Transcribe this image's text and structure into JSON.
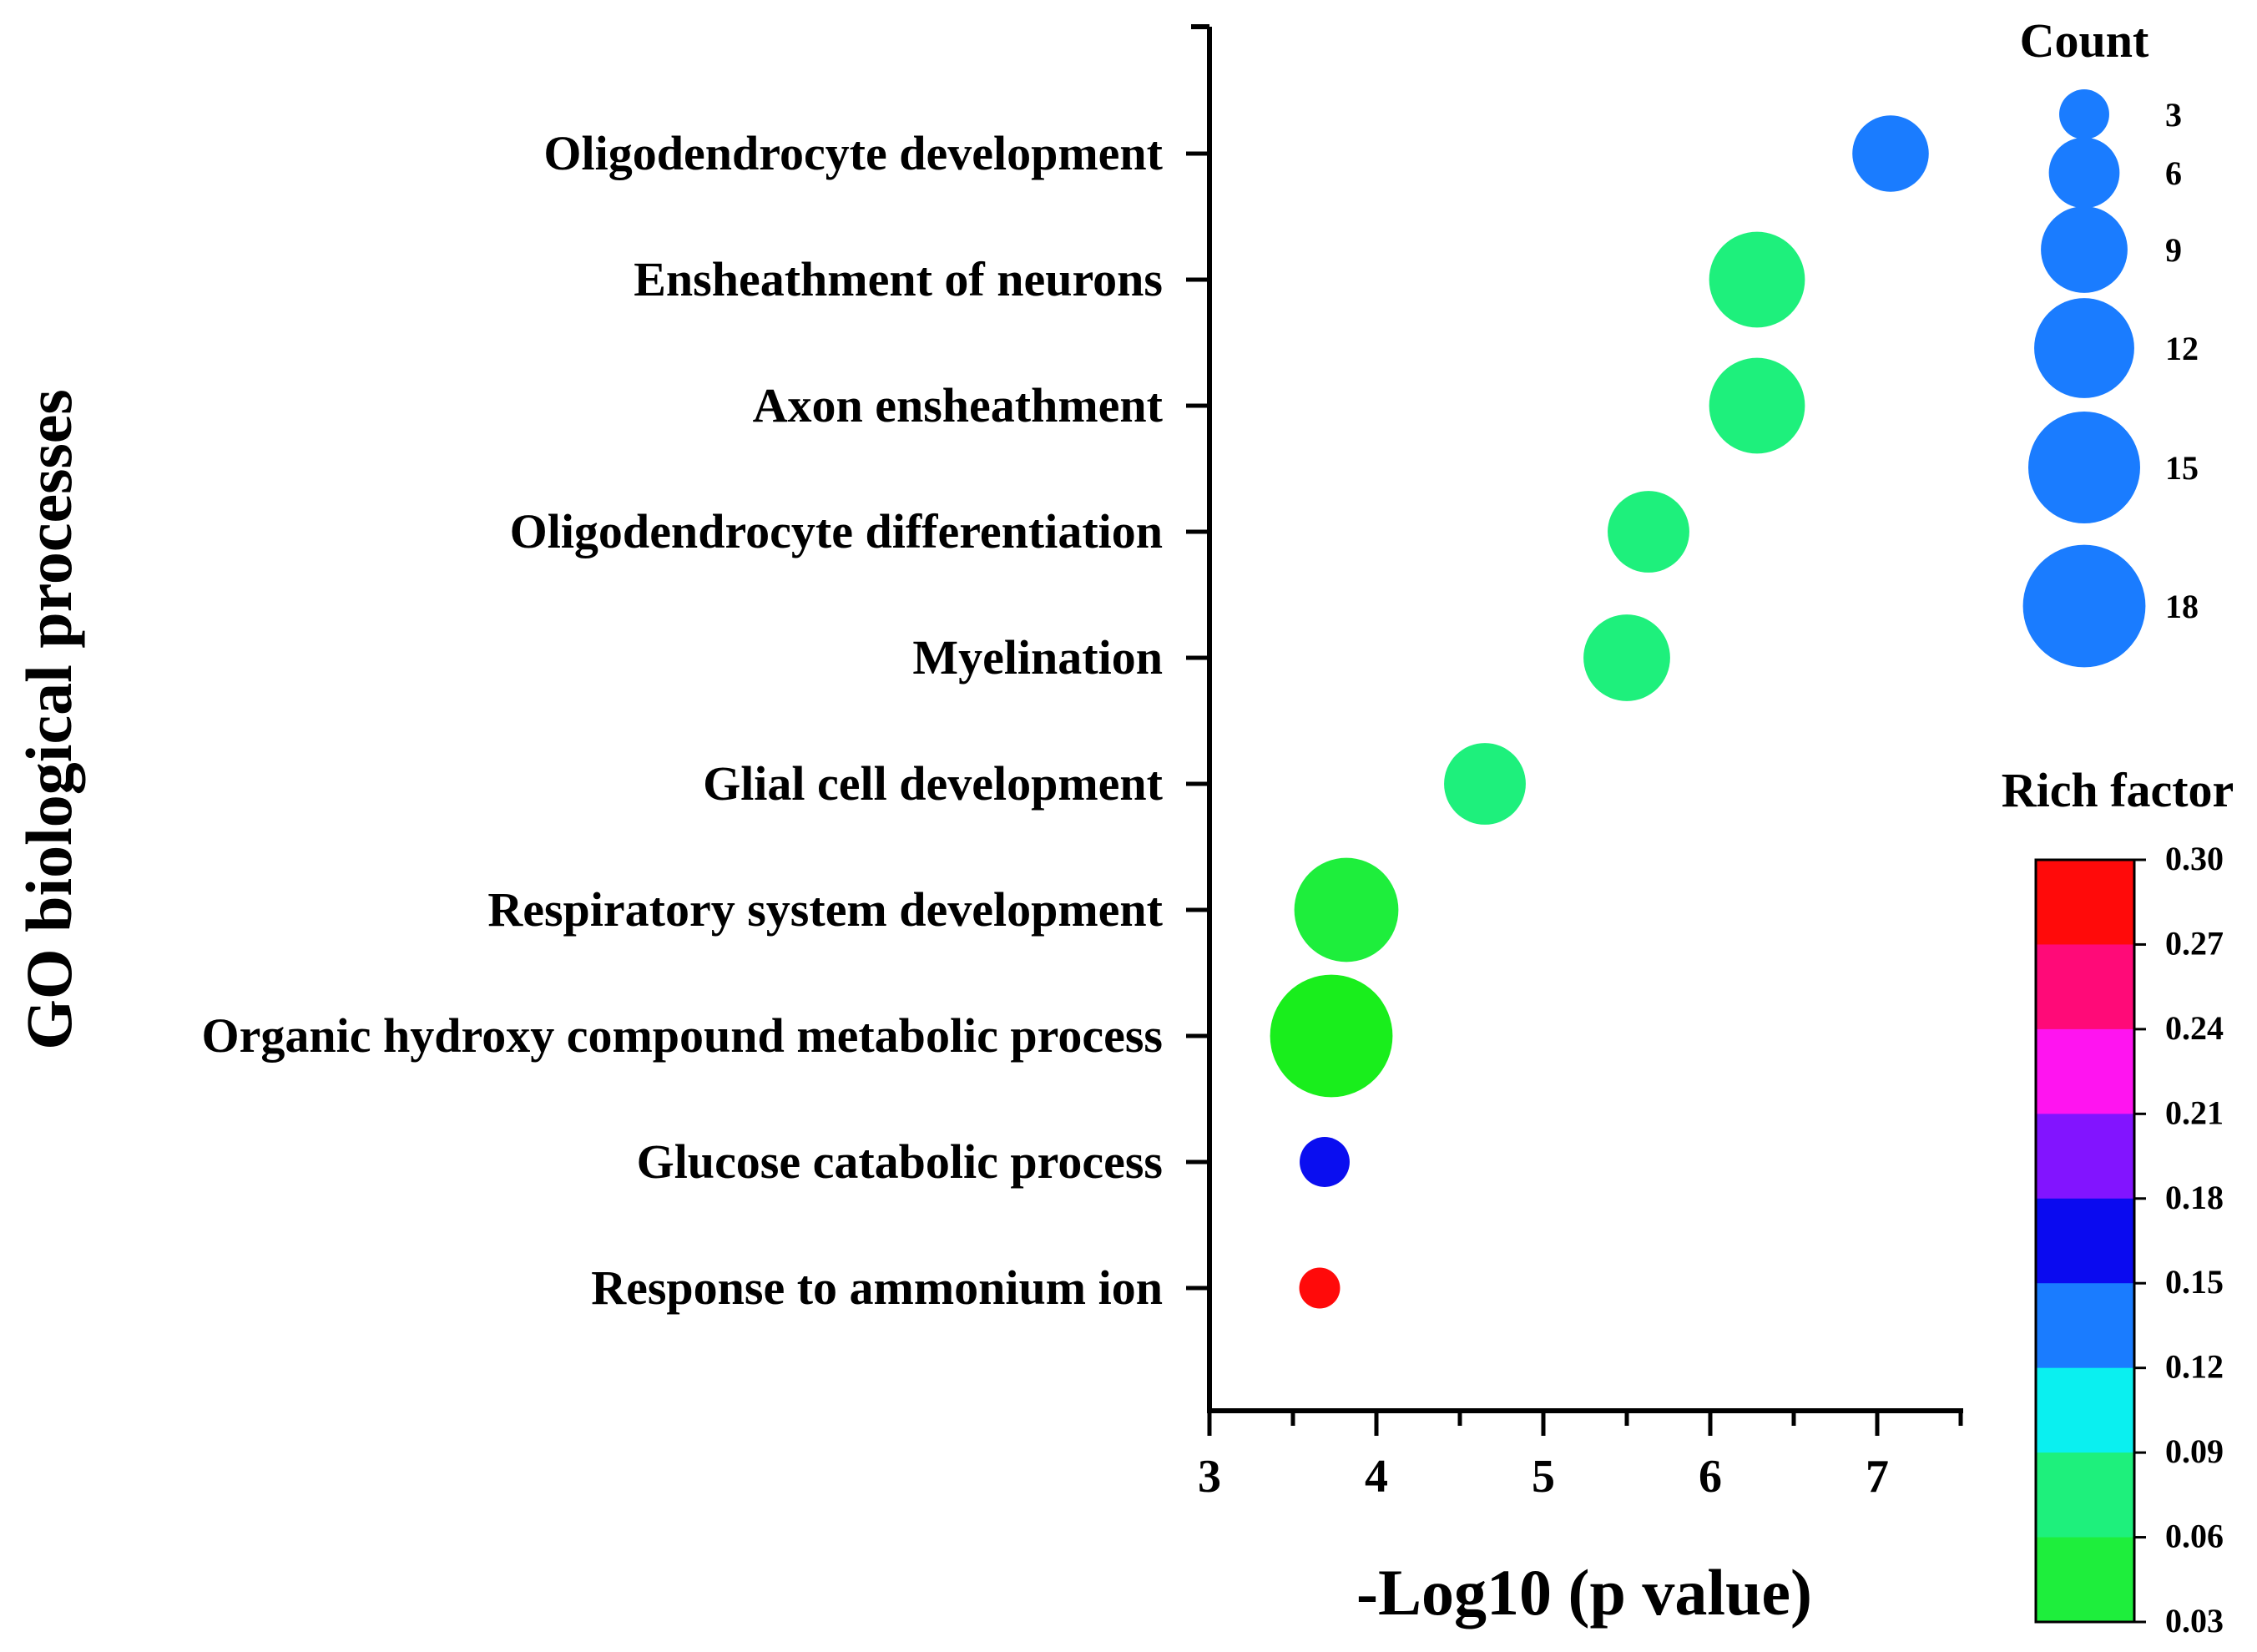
{
  "chart_data": {
    "type": "scatter",
    "subtype": "bubble",
    "xlabel": "-Log10 (p value)",
    "ylabel": "GO biological processes",
    "xlim": [
      3,
      7.5
    ],
    "xticks": [
      "3",
      "4",
      "5",
      "6",
      "7"
    ],
    "categories": [
      "Oligodendrocyte development",
      "Ensheathment of neurons",
      "Axon ensheathment",
      "Oligodendrocyte differentiation",
      "Myelination",
      "Glial cell development",
      "Respiratory system development",
      "Organic hydroxy compound metabolic process",
      "Glucose catabolic process",
      "Response to ammonium ion"
    ],
    "points": [
      {
        "term": "Oligodendrocyte development",
        "x": 7.08,
        "count": 7,
        "rich_factor": 0.12,
        "color": "#1a7cff"
      },
      {
        "term": "Ensheathment of neurons",
        "x": 6.28,
        "count": 11,
        "rich_factor": 0.06,
        "color": "#1ef07c"
      },
      {
        "term": "Axon ensheathment",
        "x": 6.28,
        "count": 11,
        "rich_factor": 0.06,
        "color": "#1ef07c"
      },
      {
        "term": "Oligodendrocyte differentiation",
        "x": 5.63,
        "count": 8,
        "rich_factor": 0.06,
        "color": "#1ef07c"
      },
      {
        "term": "Myelination",
        "x": 5.5,
        "count": 9,
        "rich_factor": 0.06,
        "color": "#1ef07c"
      },
      {
        "term": "Glial cell development",
        "x": 4.65,
        "count": 8,
        "rich_factor": 0.06,
        "color": "#1ef07c"
      },
      {
        "term": "Respiratory system development",
        "x": 3.82,
        "count": 13,
        "rich_factor": 0.05,
        "color": "#1eee3c"
      },
      {
        "term": "Organic hydroxy compound metabolic process",
        "x": 3.73,
        "count": 18,
        "rich_factor": 0.04,
        "color": "#19ee1c"
      },
      {
        "term": "Glucose catabolic process",
        "x": 3.69,
        "count": 3,
        "rich_factor": 0.15,
        "color": "#0a0ef0"
      },
      {
        "term": "Response to ammonium ion",
        "x": 3.66,
        "count": 2,
        "rich_factor": 0.3,
        "color": "#ff0a0a"
      }
    ],
    "size_legend": {
      "title": "Count",
      "entries": [
        {
          "label": "3",
          "value": 3
        },
        {
          "label": "6",
          "value": 6
        },
        {
          "label": "9",
          "value": 9
        },
        {
          "label": "12",
          "value": 12
        },
        {
          "label": "15",
          "value": 15
        },
        {
          "label": "18",
          "value": 18
        }
      ],
      "color": "#1a7cff"
    },
    "color_legend": {
      "title": "Rich factor",
      "ticks": [
        "0.30",
        "0.27",
        "0.24",
        "0.21",
        "0.18",
        "0.15",
        "0.12",
        "0.09",
        "0.06",
        "0.03"
      ],
      "bands_top_to_bottom": [
        "#ff0a0a",
        "#ff0a78",
        "#ff14f0",
        "#8214ff",
        "#0a0af0",
        "#1a7cff",
        "#0af0f0",
        "#1ef07c",
        "#1eee3c"
      ]
    }
  }
}
